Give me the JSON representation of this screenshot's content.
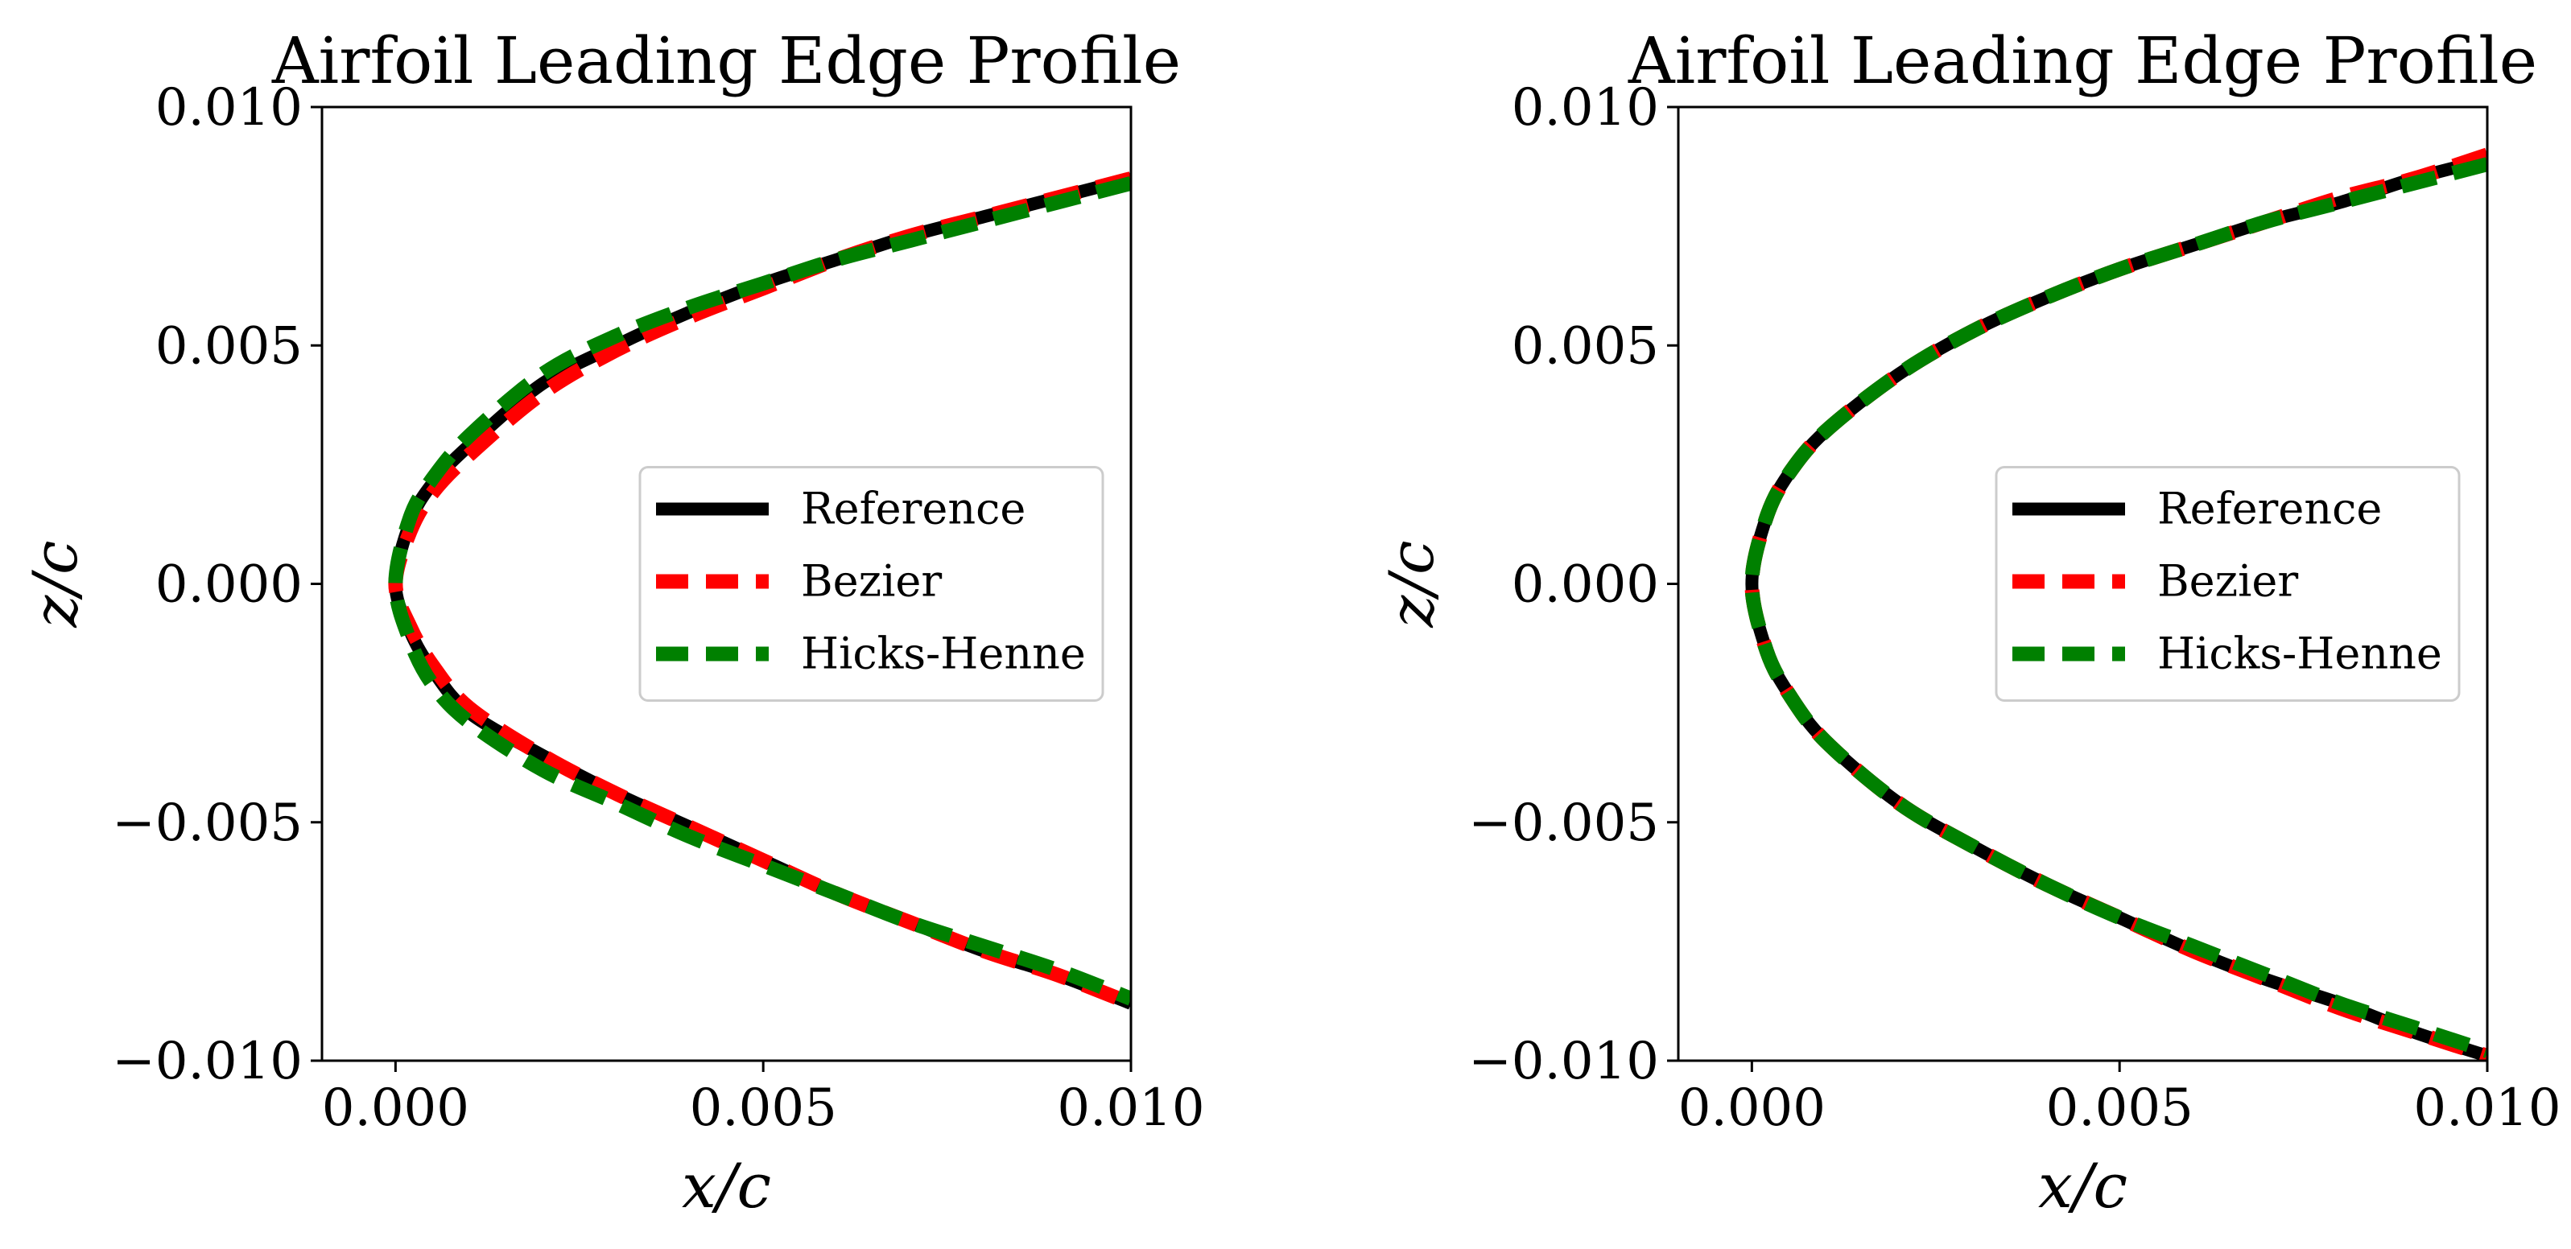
{
  "chart_data": [
    {
      "type": "line",
      "title": "Airfoil Leading Edge Profile",
      "xlabel": "x/c",
      "ylabel": "z/c",
      "xlim": [
        -0.001,
        0.01
      ],
      "ylim": [
        -0.01,
        0.01
      ],
      "xticks": [
        0.0,
        0.005,
        0.01
      ],
      "xtick_labels": [
        "0.000",
        "0.005",
        "0.010"
      ],
      "yticks": [
        -0.01,
        -0.005,
        0.0,
        0.005,
        0.01
      ],
      "ytick_labels": [
        "−0.010",
        "−0.005",
        "0.000",
        "0.005",
        "0.010"
      ],
      "grid": false,
      "legend_position": "center-right",
      "series": [
        {
          "name": "Reference",
          "color": "#000000",
          "style": "solid",
          "upper": {
            "x": [
              0,
              0.0002,
              0.0005,
              0.001,
              0.002,
              0.003,
              0.004,
              0.005,
              0.006,
              0.007,
              0.008,
              0.009,
              0.01
            ],
            "y": [
              0,
              0.0013,
              0.0021,
              0.0029,
              0.0042,
              0.005,
              0.0057,
              0.0063,
              0.0068,
              0.0073,
              0.0077,
              0.0081,
              0.0085
            ]
          },
          "lower": {
            "x": [
              0,
              0.0002,
              0.0005,
              0.001,
              0.002,
              0.003,
              0.004,
              0.005,
              0.006,
              0.007,
              0.008,
              0.009,
              0.01
            ],
            "y": [
              0,
              -0.001,
              -0.0018,
              -0.0027,
              -0.0036,
              -0.0044,
              -0.0051,
              -0.0058,
              -0.0065,
              -0.0071,
              -0.0077,
              -0.0082,
              -0.0088
            ]
          }
        },
        {
          "name": "Bezier",
          "color": "#ff0000",
          "style": "dashed",
          "upper": {
            "x": [
              0,
              0.0002,
              0.0005,
              0.001,
              0.002,
              0.003,
              0.004,
              0.005,
              0.006,
              0.007,
              0.008,
              0.009,
              0.01
            ],
            "y": [
              0,
              0.0011,
              0.0019,
              0.0027,
              0.004,
              0.0049,
              0.0056,
              0.0062,
              0.0068,
              0.0073,
              0.0077,
              0.0081,
              0.0085
            ]
          },
          "lower": {
            "x": [
              0,
              0.0002,
              0.0005,
              0.001,
              0.002,
              0.003,
              0.004,
              0.005,
              0.006,
              0.007,
              0.008,
              0.009,
              0.01
            ],
            "y": [
              0,
              -0.0009,
              -0.0017,
              -0.0026,
              -0.0036,
              -0.0044,
              -0.0051,
              -0.0058,
              -0.0065,
              -0.0071,
              -0.0077,
              -0.0082,
              -0.0088
            ]
          }
        },
        {
          "name": "Hicks-Henne",
          "color": "#008000",
          "style": "dashed",
          "upper": {
            "x": [
              0,
              0.0002,
              0.0005,
              0.001,
              0.002,
              0.003,
              0.004,
              0.005,
              0.006,
              0.007,
              0.008,
              0.009,
              0.01
            ],
            "y": [
              0,
              0.0014,
              0.0022,
              0.0031,
              0.0044,
              0.0052,
              0.0058,
              0.0063,
              0.0068,
              0.0072,
              0.0076,
              0.008,
              0.0084
            ]
          },
          "lower": {
            "x": [
              0,
              0.0002,
              0.0005,
              0.001,
              0.002,
              0.003,
              0.004,
              0.005,
              0.006,
              0.007,
              0.008,
              0.009,
              0.01
            ],
            "y": [
              0,
              -0.0012,
              -0.0021,
              -0.0029,
              -0.0039,
              -0.0046,
              -0.0053,
              -0.0059,
              -0.0065,
              -0.0071,
              -0.0076,
              -0.0081,
              -0.0087
            ]
          }
        }
      ]
    },
    {
      "type": "line",
      "title": "Airfoil Leading Edge Profile",
      "xlabel": "x/c",
      "ylabel": "z/c",
      "xlim": [
        -0.001,
        0.01
      ],
      "ylim": [
        -0.01,
        0.01
      ],
      "xticks": [
        0.0,
        0.005,
        0.01
      ],
      "xtick_labels": [
        "0.000",
        "0.005",
        "0.010"
      ],
      "yticks": [
        -0.01,
        -0.005,
        0.0,
        0.005,
        0.01
      ],
      "ytick_labels": [
        "−0.010",
        "−0.005",
        "0.000",
        "0.005",
        "0.010"
      ],
      "grid": false,
      "legend_position": "center-right",
      "series": [
        {
          "name": "Reference",
          "color": "#000000",
          "style": "solid",
          "upper": {
            "x": [
              0,
              0.0002,
              0.0005,
              0.001,
              0.002,
              0.003,
              0.004,
              0.005,
              0.006,
              0.007,
              0.008,
              0.009,
              0.01
            ],
            "y": [
              0,
              0.0014,
              0.0023,
              0.0032,
              0.0044,
              0.0053,
              0.006,
              0.0066,
              0.0071,
              0.0076,
              0.008,
              0.0085,
              0.0089
            ]
          },
          "lower": {
            "x": [
              0,
              0.0002,
              0.0005,
              0.001,
              0.002,
              0.003,
              0.004,
              0.005,
              0.006,
              0.007,
              0.008,
              0.009,
              0.01
            ],
            "y": [
              0,
              -0.0014,
              -0.0023,
              -0.0033,
              -0.0046,
              -0.0055,
              -0.0063,
              -0.007,
              -0.0077,
              -0.0083,
              -0.0088,
              -0.0094,
              -0.0099
            ]
          }
        },
        {
          "name": "Bezier",
          "color": "#ff0000",
          "style": "dashed",
          "upper": {
            "x": [
              0,
              0.0002,
              0.0005,
              0.001,
              0.002,
              0.003,
              0.004,
              0.005,
              0.006,
              0.007,
              0.008,
              0.009,
              0.01
            ],
            "y": [
              0,
              0.0014,
              0.0023,
              0.0032,
              0.0044,
              0.0053,
              0.006,
              0.0066,
              0.0071,
              0.0076,
              0.0081,
              0.0085,
              0.009
            ]
          },
          "lower": {
            "x": [
              0,
              0.0002,
              0.0005,
              0.001,
              0.002,
              0.003,
              0.004,
              0.005,
              0.006,
              0.007,
              0.008,
              0.009,
              0.01
            ],
            "y": [
              0,
              -0.0014,
              -0.0023,
              -0.0033,
              -0.0046,
              -0.0055,
              -0.0063,
              -0.007,
              -0.0077,
              -0.0083,
              -0.0089,
              -0.0094,
              -0.0099
            ]
          }
        },
        {
          "name": "Hicks-Henne",
          "color": "#008000",
          "style": "dashed",
          "upper": {
            "x": [
              0,
              0.0002,
              0.0005,
              0.001,
              0.002,
              0.003,
              0.004,
              0.005,
              0.006,
              0.007,
              0.008,
              0.009,
              0.01
            ],
            "y": [
              0,
              0.0014,
              0.0023,
              0.0032,
              0.0044,
              0.0053,
              0.006,
              0.0066,
              0.0071,
              0.0076,
              0.008,
              0.0084,
              0.0088
            ]
          },
          "lower": {
            "x": [
              0,
              0.0002,
              0.0005,
              0.001,
              0.002,
              0.003,
              0.004,
              0.005,
              0.006,
              0.007,
              0.008,
              0.009,
              0.01
            ],
            "y": [
              0,
              -0.0014,
              -0.0023,
              -0.0033,
              -0.0046,
              -0.0055,
              -0.0063,
              -0.007,
              -0.0076,
              -0.0082,
              -0.0088,
              -0.0093,
              -0.0098
            ]
          }
        }
      ]
    }
  ]
}
